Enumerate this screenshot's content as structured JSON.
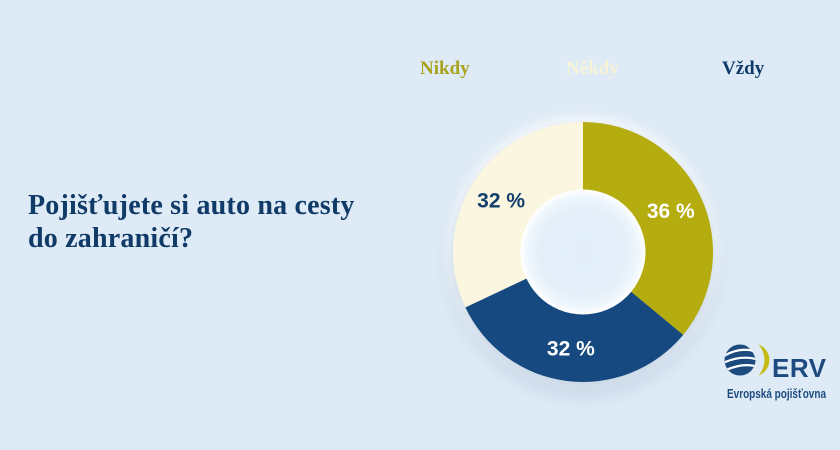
{
  "background_color": "#deebf6",
  "title": {
    "text": "Pojišťujete si auto na cesty do zahraničí?",
    "color": "#103a68"
  },
  "legend": {
    "items": [
      {
        "label": "Nikdy",
        "color": "#a9a21d"
      },
      {
        "label": "Někdy",
        "color": "#f8f3d6"
      },
      {
        "label": "Vždy",
        "color": "#103a68"
      }
    ]
  },
  "chart_data": {
    "type": "pie",
    "variant": "donut",
    "title": "Pojišťujete si auto na cesty do zahraničí?",
    "unit": "%",
    "direction": "clockwise",
    "start_angle_deg": 0,
    "total": 100,
    "legend_position": "top",
    "segments": [
      {
        "label": "Nikdy",
        "value": 36,
        "display": "36 %",
        "color": "#b5ac0f",
        "label_color": "#ffffff"
      },
      {
        "label": "Vždy",
        "value": 32,
        "display": "32 %",
        "color": "#15497f",
        "label_color": "#ffffff"
      },
      {
        "label": "Někdy",
        "value": 32,
        "display": "32 %",
        "color": "#faf6e0",
        "label_color": "#123f6d"
      }
    ]
  },
  "logo": {
    "brand": "ERV",
    "subtitle": "Evropská pojišťovna",
    "navy": "#1d4b80",
    "olive": "#c3ba14"
  }
}
